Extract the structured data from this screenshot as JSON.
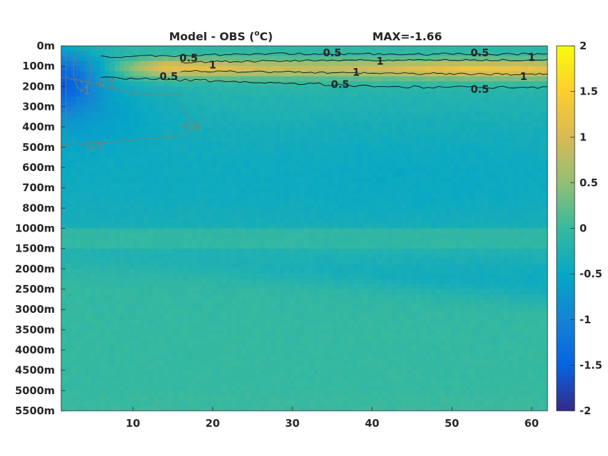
{
  "chart_data": {
    "type": "heatmap",
    "title": "Model - OBS (",
    "title_unit_super": "o",
    "title_unit": "C)",
    "max_label": "MAX=-1.66",
    "colormap": "parula",
    "clim": [
      -2,
      2
    ],
    "xlim": [
      1,
      62
    ],
    "x_ticks": [
      10,
      20,
      30,
      40,
      50,
      60
    ],
    "y_ticks": [
      "0m",
      "100m",
      "200m",
      "300m",
      "400m",
      "500m",
      "600m",
      "700m",
      "800m",
      "1000m",
      "1500m",
      "2000m",
      "2500m",
      "3000m",
      "3500m",
      "4000m",
      "4500m",
      "5000m",
      "5500m"
    ],
    "colorbar_ticks": [
      "2",
      "1.5",
      "1",
      "0.5",
      "0",
      "-0.5",
      "-1",
      "-1.5",
      "-2"
    ],
    "colorbar_values": [
      2,
      1.5,
      1,
      0.5,
      0,
      -0.5,
      -1,
      -1.5,
      -2
    ],
    "grid": false,
    "contours": [
      {
        "level": 0.5,
        "color": "#000000"
      },
      {
        "level": 1,
        "color": "#000000"
      },
      {
        "level": -0.5,
        "color": "#8a7a66"
      },
      {
        "level": -1,
        "color": "#8a7a66"
      }
    ],
    "contour_labels": [
      {
        "text": "0.5",
        "x": 17,
        "depth_index": 0.6
      },
      {
        "text": "1",
        "x": 20,
        "depth_index": 0.95
      },
      {
        "text": "0.5",
        "x": 14.5,
        "depth_index": 1.5
      },
      {
        "text": "0.5",
        "x": 35,
        "depth_index": 0.35
      },
      {
        "text": "1",
        "x": 41,
        "depth_index": 0.75
      },
      {
        "text": "1",
        "x": 38,
        "depth_index": 1.3
      },
      {
        "text": "0.5",
        "x": 36,
        "depth_index": 1.9
      },
      {
        "text": "0.5",
        "x": 53.5,
        "depth_index": 0.35
      },
      {
        "text": "1",
        "x": 60,
        "depth_index": 0.55
      },
      {
        "text": "1",
        "x": 59,
        "depth_index": 1.5
      },
      {
        "text": "0.5",
        "x": 53.5,
        "depth_index": 2.15
      },
      {
        "text": "-0.5",
        "x": 6.5,
        "depth_index": 1.8
      },
      {
        "text": "-1",
        "x": 4,
        "depth_index": 2.2
      },
      {
        "text": "-0.5",
        "x": 5,
        "depth_index": 4.95
      },
      {
        "text": "-0.5",
        "x": 17.2,
        "depth_index": 4.0
      }
    ]
  }
}
